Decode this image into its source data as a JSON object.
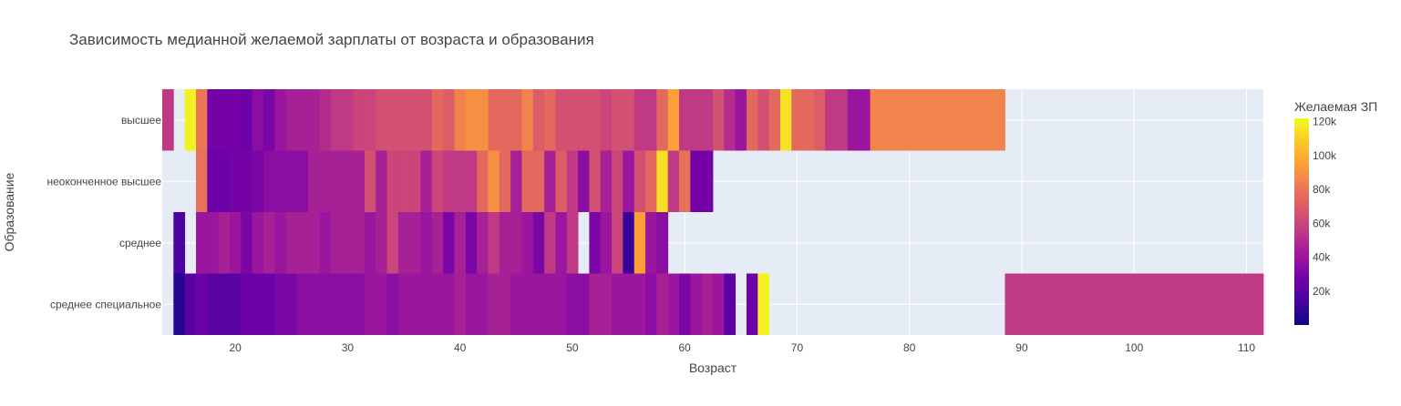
{
  "chart_data": {
    "type": "heatmap",
    "title": "Зависимость медианной желаемой зарплаты от возраста и образования",
    "xlabel": "Возраст",
    "ylabel": "Образование",
    "xlim": [
      13.5,
      111.5
    ],
    "x_ticks": [
      20,
      30,
      40,
      50,
      60,
      70,
      80,
      90,
      100,
      110
    ],
    "categories": [
      "высшее",
      "неоконченное высшее",
      "среднее",
      "среднее специальное"
    ],
    "colorbar": {
      "title": "Желаемая ЗП",
      "range": [
        0,
        122000
      ],
      "ticks": [
        20000,
        40000,
        60000,
        80000,
        100000,
        120000
      ],
      "tick_labels": [
        "20k",
        "40k",
        "60k",
        "80k",
        "100k",
        "120k"
      ],
      "colorscale": [
        "#0d0887",
        "#46039f",
        "#7201a8",
        "#9c179e",
        "#bd3786",
        "#d8576b",
        "#ed7953",
        "#fb9f3a",
        "#fdca26",
        "#f0f921"
      ]
    },
    "grid": true,
    "plot_bg": "#e5ecf6",
    "rows": [
      {
        "category": "высшее",
        "cells": [
          [
            13.5,
            14.5,
            55000
          ],
          [
            15.5,
            16.5,
            120000
          ],
          [
            16.5,
            17.5,
            80000
          ],
          [
            17.5,
            18.5,
            28000
          ],
          [
            18.5,
            19.5,
            28000
          ],
          [
            19.5,
            20.5,
            28000
          ],
          [
            20.5,
            21.5,
            25000
          ],
          [
            21.5,
            22.5,
            35000
          ],
          [
            22.5,
            23.5,
            30000
          ],
          [
            23.5,
            24.5,
            40000
          ],
          [
            24.5,
            25.5,
            45000
          ],
          [
            25.5,
            26.5,
            45000
          ],
          [
            26.5,
            27.5,
            45000
          ],
          [
            27.5,
            28.5,
            50000
          ],
          [
            28.5,
            29.5,
            55000
          ],
          [
            29.5,
            30.5,
            55000
          ],
          [
            30.5,
            31.5,
            60000
          ],
          [
            31.5,
            32.5,
            60000
          ],
          [
            32.5,
            33.5,
            65000
          ],
          [
            33.5,
            34.5,
            65000
          ],
          [
            34.5,
            35.5,
            65000
          ],
          [
            35.5,
            36.5,
            65000
          ],
          [
            36.5,
            37.5,
            65000
          ],
          [
            37.5,
            38.5,
            75000
          ],
          [
            38.5,
            39.5,
            70000
          ],
          [
            39.5,
            40.5,
            85000
          ],
          [
            40.5,
            41.5,
            90000
          ],
          [
            41.5,
            42.5,
            90000
          ],
          [
            42.5,
            43.5,
            75000
          ],
          [
            43.5,
            44.5,
            75000
          ],
          [
            44.5,
            45.5,
            75000
          ],
          [
            45.5,
            46.5,
            85000
          ],
          [
            46.5,
            47.5,
            70000
          ],
          [
            47.5,
            48.5,
            75000
          ],
          [
            48.5,
            49.5,
            65000
          ],
          [
            49.5,
            50.5,
            65000
          ],
          [
            50.5,
            51.5,
            65000
          ],
          [
            51.5,
            52.5,
            65000
          ],
          [
            52.5,
            53.5,
            60000
          ],
          [
            53.5,
            54.5,
            65000
          ],
          [
            54.5,
            55.5,
            65000
          ],
          [
            55.5,
            56.5,
            55000
          ],
          [
            56.5,
            57.5,
            55000
          ],
          [
            57.5,
            58.5,
            75000
          ],
          [
            58.5,
            59.5,
            95000
          ],
          [
            59.5,
            60.5,
            55000
          ],
          [
            60.5,
            61.5,
            55000
          ],
          [
            61.5,
            62.5,
            55000
          ],
          [
            62.5,
            63.5,
            65000
          ],
          [
            63.5,
            64.5,
            50000
          ],
          [
            64.5,
            65.5,
            40000
          ],
          [
            65.5,
            66.5,
            75000
          ],
          [
            66.5,
            67.5,
            65000
          ],
          [
            67.5,
            68.5,
            75000
          ],
          [
            68.5,
            69.5,
            115000
          ],
          [
            69.5,
            70.5,
            75000
          ],
          [
            70.5,
            71.5,
            75000
          ],
          [
            71.5,
            72.5,
            70000
          ],
          [
            72.5,
            73.5,
            55000
          ],
          [
            73.5,
            74.5,
            55000
          ],
          [
            74.5,
            75.5,
            40000
          ],
          [
            75.5,
            76.5,
            40000
          ],
          [
            76.5,
            88.5,
            85000
          ]
        ]
      },
      {
        "category": "неоконченное высшее",
        "cells": [
          [
            16.5,
            17.5,
            78000
          ],
          [
            17.5,
            18.5,
            25000
          ],
          [
            18.5,
            19.5,
            25000
          ],
          [
            19.5,
            20.5,
            28000
          ],
          [
            20.5,
            21.5,
            28000
          ],
          [
            21.5,
            22.5,
            30000
          ],
          [
            22.5,
            23.5,
            35000
          ],
          [
            23.5,
            24.5,
            35000
          ],
          [
            24.5,
            25.5,
            35000
          ],
          [
            25.5,
            26.5,
            35000
          ],
          [
            26.5,
            27.5,
            45000
          ],
          [
            27.5,
            28.5,
            45000
          ],
          [
            28.5,
            29.5,
            45000
          ],
          [
            29.5,
            30.5,
            45000
          ],
          [
            30.5,
            31.5,
            45000
          ],
          [
            31.5,
            32.5,
            65000
          ],
          [
            32.5,
            33.5,
            45000
          ],
          [
            33.5,
            34.5,
            60000
          ],
          [
            34.5,
            35.5,
            60000
          ],
          [
            35.5,
            36.5,
            60000
          ],
          [
            36.5,
            37.5,
            45000
          ],
          [
            37.5,
            38.5,
            60000
          ],
          [
            38.5,
            39.5,
            55000
          ],
          [
            39.5,
            40.5,
            55000
          ],
          [
            40.5,
            41.5,
            55000
          ],
          [
            41.5,
            42.5,
            75000
          ],
          [
            42.5,
            43.5,
            90000
          ],
          [
            43.5,
            44.5,
            75000
          ],
          [
            44.5,
            45.5,
            45000
          ],
          [
            45.5,
            46.5,
            75000
          ],
          [
            46.5,
            47.5,
            75000
          ],
          [
            47.5,
            48.5,
            45000
          ],
          [
            48.5,
            49.5,
            70000
          ],
          [
            49.5,
            50.5,
            55000
          ],
          [
            50.5,
            51.5,
            35000
          ],
          [
            51.5,
            52.5,
            65000
          ],
          [
            52.5,
            53.5,
            45000
          ],
          [
            53.5,
            54.5,
            60000
          ],
          [
            54.5,
            55.5,
            40000
          ],
          [
            55.5,
            56.5,
            65000
          ],
          [
            56.5,
            57.5,
            75000
          ],
          [
            57.5,
            58.5,
            115000
          ],
          [
            58.5,
            59.5,
            55000
          ],
          [
            59.5,
            60.5,
            78000
          ],
          [
            60.5,
            61.5,
            28000
          ],
          [
            61.5,
            62.5,
            28000
          ]
        ]
      },
      {
        "category": "среднее",
        "cells": [
          [
            14.5,
            15.5,
            15000
          ],
          [
            16.5,
            17.5,
            40000
          ],
          [
            17.5,
            18.5,
            40000
          ],
          [
            18.5,
            19.5,
            45000
          ],
          [
            19.5,
            20.5,
            40000
          ],
          [
            20.5,
            21.5,
            30000
          ],
          [
            21.5,
            22.5,
            40000
          ],
          [
            22.5,
            23.5,
            45000
          ],
          [
            23.5,
            24.5,
            40000
          ],
          [
            24.5,
            25.5,
            45000
          ],
          [
            25.5,
            26.5,
            45000
          ],
          [
            26.5,
            27.5,
            45000
          ],
          [
            27.5,
            28.5,
            40000
          ],
          [
            28.5,
            29.5,
            45000
          ],
          [
            29.5,
            30.5,
            45000
          ],
          [
            30.5,
            31.5,
            45000
          ],
          [
            31.5,
            32.5,
            40000
          ],
          [
            32.5,
            33.5,
            45000
          ],
          [
            33.5,
            34.5,
            60000
          ],
          [
            34.5,
            35.5,
            45000
          ],
          [
            35.5,
            36.5,
            45000
          ],
          [
            36.5,
            37.5,
            40000
          ],
          [
            37.5,
            38.5,
            45000
          ],
          [
            38.5,
            39.5,
            30000
          ],
          [
            39.5,
            40.5,
            45000
          ],
          [
            40.5,
            41.5,
            30000
          ],
          [
            41.5,
            42.5,
            45000
          ],
          [
            42.5,
            43.5,
            55000
          ],
          [
            43.5,
            44.5,
            45000
          ],
          [
            44.5,
            45.5,
            45000
          ],
          [
            45.5,
            46.5,
            40000
          ],
          [
            46.5,
            47.5,
            30000
          ],
          [
            47.5,
            48.5,
            55000
          ],
          [
            48.5,
            49.5,
            40000
          ],
          [
            49.5,
            50.5,
            55000
          ],
          [
            51.5,
            52.5,
            30000
          ],
          [
            52.5,
            53.5,
            40000
          ],
          [
            53.5,
            54.5,
            60000
          ],
          [
            54.5,
            55.5,
            10000
          ],
          [
            55.5,
            56.5,
            95000
          ],
          [
            56.5,
            57.5,
            40000
          ],
          [
            57.5,
            58.5,
            35000
          ]
        ]
      },
      {
        "category": "среднее специальное",
        "cells": [
          [
            14.5,
            15.5,
            5000
          ],
          [
            15.5,
            16.5,
            20000
          ],
          [
            16.5,
            17.5,
            25000
          ],
          [
            17.5,
            18.5,
            20000
          ],
          [
            18.5,
            19.5,
            20000
          ],
          [
            19.5,
            20.5,
            20000
          ],
          [
            20.5,
            21.5,
            25000
          ],
          [
            21.5,
            22.5,
            25000
          ],
          [
            22.5,
            23.5,
            25000
          ],
          [
            23.5,
            24.5,
            30000
          ],
          [
            24.5,
            25.5,
            30000
          ],
          [
            25.5,
            26.5,
            35000
          ],
          [
            26.5,
            27.5,
            35000
          ],
          [
            27.5,
            28.5,
            35000
          ],
          [
            28.5,
            29.5,
            35000
          ],
          [
            29.5,
            30.5,
            35000
          ],
          [
            30.5,
            31.5,
            35000
          ],
          [
            31.5,
            32.5,
            40000
          ],
          [
            32.5,
            33.5,
            40000
          ],
          [
            33.5,
            34.5,
            35000
          ],
          [
            34.5,
            35.5,
            40000
          ],
          [
            35.5,
            36.5,
            40000
          ],
          [
            36.5,
            37.5,
            40000
          ],
          [
            37.5,
            38.5,
            40000
          ],
          [
            38.5,
            39.5,
            40000
          ],
          [
            39.5,
            40.5,
            45000
          ],
          [
            40.5,
            41.5,
            40000
          ],
          [
            41.5,
            42.5,
            40000
          ],
          [
            42.5,
            43.5,
            45000
          ],
          [
            43.5,
            44.5,
            45000
          ],
          [
            44.5,
            45.5,
            40000
          ],
          [
            45.5,
            46.5,
            40000
          ],
          [
            46.5,
            47.5,
            40000
          ],
          [
            47.5,
            48.5,
            40000
          ],
          [
            48.5,
            49.5,
            40000
          ],
          [
            49.5,
            50.5,
            35000
          ],
          [
            50.5,
            51.5,
            35000
          ],
          [
            51.5,
            52.5,
            45000
          ],
          [
            52.5,
            53.5,
            45000
          ],
          [
            53.5,
            54.5,
            40000
          ],
          [
            54.5,
            55.5,
            40000
          ],
          [
            55.5,
            56.5,
            40000
          ],
          [
            56.5,
            57.5,
            35000
          ],
          [
            57.5,
            58.5,
            45000
          ],
          [
            58.5,
            59.5,
            40000
          ],
          [
            59.5,
            60.5,
            30000
          ],
          [
            60.5,
            61.5,
            40000
          ],
          [
            61.5,
            62.5,
            45000
          ],
          [
            62.5,
            63.5,
            40000
          ],
          [
            63.5,
            64.5,
            20000
          ],
          [
            65.5,
            66.5,
            25000
          ],
          [
            66.5,
            67.5,
            120000
          ],
          [
            88.5,
            111.5,
            55000
          ]
        ]
      }
    ]
  }
}
